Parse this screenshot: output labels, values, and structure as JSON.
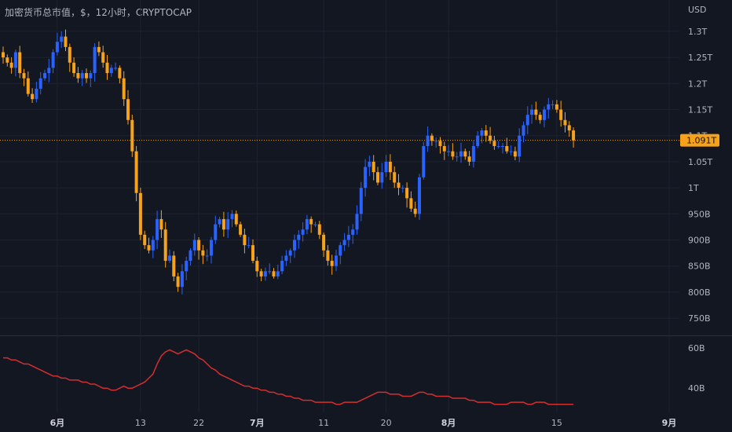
{
  "header": {
    "title": "加密货币总市值，$，12小时，CRYPTOCAP"
  },
  "colors": {
    "background": "#131722",
    "grid": "#1e2230",
    "up": "#2962ff",
    "down": "#f7a21b",
    "volume_line": "#d32f2f",
    "price_tag": "#f7a21b"
  },
  "chart_data": [
    {
      "type": "candlestick",
      "title": "加密货币总市值，$，12小时，CRYPTOCAP",
      "currency_label": "USD",
      "y_ticks": [
        {
          "value": 0.75,
          "label": "750B"
        },
        {
          "value": 0.8,
          "label": "800B"
        },
        {
          "value": 0.85,
          "label": "850B"
        },
        {
          "value": 0.9,
          "label": "900B"
        },
        {
          "value": 0.95,
          "label": "950B"
        },
        {
          "value": 1.0,
          "label": "1T"
        },
        {
          "value": 1.05,
          "label": "1.05T"
        },
        {
          "value": 1.1,
          "label": "1.1T"
        },
        {
          "value": 1.15,
          "label": "1.15T"
        },
        {
          "value": 1.2,
          "label": "1.2T"
        },
        {
          "value": 1.25,
          "label": "1.25T"
        },
        {
          "value": 1.3,
          "label": "1.3T"
        }
      ],
      "ylim": [
        0.72,
        1.33
      ],
      "x_ticks": [
        {
          "index": 13,
          "label": "6月",
          "bold": true
        },
        {
          "index": 33,
          "label": "13",
          "bold": false
        },
        {
          "index": 47,
          "label": "22",
          "bold": false
        },
        {
          "index": 61,
          "label": "7月",
          "bold": true
        },
        {
          "index": 77,
          "label": "11",
          "bold": false
        },
        {
          "index": 92,
          "label": "20",
          "bold": false
        },
        {
          "index": 107,
          "label": "8月",
          "bold": true
        },
        {
          "index": 133,
          "label": "15",
          "bold": false
        },
        {
          "index": 160,
          "label": "9月",
          "bold": true
        }
      ],
      "current_price": 1.091,
      "current_price_label": "1.091T",
      "candle_count": 138,
      "close_series": [
        1.25,
        1.24,
        1.23,
        1.26,
        1.22,
        1.21,
        1.18,
        1.17,
        1.19,
        1.21,
        1.22,
        1.23,
        1.26,
        1.28,
        1.29,
        1.27,
        1.24,
        1.22,
        1.21,
        1.22,
        1.21,
        1.22,
        1.27,
        1.26,
        1.24,
        1.22,
        1.23,
        1.23,
        1.21,
        1.17,
        1.13,
        1.07,
        0.99,
        0.91,
        0.89,
        0.88,
        0.9,
        0.94,
        0.92,
        0.86,
        0.87,
        0.83,
        0.81,
        0.84,
        0.86,
        0.88,
        0.9,
        0.88,
        0.87,
        0.87,
        0.9,
        0.93,
        0.94,
        0.92,
        0.94,
        0.95,
        0.93,
        0.91,
        0.89,
        0.89,
        0.86,
        0.84,
        0.83,
        0.84,
        0.84,
        0.83,
        0.84,
        0.86,
        0.87,
        0.88,
        0.9,
        0.91,
        0.92,
        0.94,
        0.93,
        0.93,
        0.91,
        0.88,
        0.86,
        0.85,
        0.87,
        0.89,
        0.9,
        0.91,
        0.92,
        0.95,
        1.0,
        1.04,
        1.05,
        1.03,
        1.01,
        1.03,
        1.05,
        1.03,
        1.01,
        1.0,
        1.0,
        0.98,
        0.96,
        0.95,
        1.02,
        1.08,
        1.1,
        1.09,
        1.09,
        1.08,
        1.07,
        1.07,
        1.06,
        1.06,
        1.07,
        1.06,
        1.05,
        1.08,
        1.1,
        1.11,
        1.1,
        1.09,
        1.08,
        1.08,
        1.08,
        1.07,
        1.07,
        1.06,
        1.1,
        1.12,
        1.14,
        1.15,
        1.14,
        1.13,
        1.15,
        1.16,
        1.16,
        1.15,
        1.13,
        1.12,
        1.11,
        1.091
      ]
    },
    {
      "type": "line",
      "series_role": "volume",
      "y_ticks": [
        {
          "value": 40,
          "label": "40B"
        },
        {
          "value": 60,
          "label": "60B"
        }
      ],
      "ylim": [
        28,
        65
      ],
      "values": [
        55,
        55,
        54,
        54,
        53,
        52,
        52,
        51,
        50,
        49,
        48,
        47,
        46,
        46,
        45,
        45,
        44,
        44,
        44,
        43,
        43,
        42,
        42,
        41,
        40,
        40,
        39,
        39,
        40,
        41,
        40,
        40,
        41,
        42,
        43,
        45,
        47,
        52,
        56,
        58,
        59,
        58,
        57,
        58,
        59,
        58,
        57,
        55,
        54,
        52,
        50,
        49,
        47,
        46,
        45,
        44,
        43,
        42,
        41,
        41,
        40,
        40,
        39,
        39,
        38,
        38,
        37,
        37,
        36,
        36,
        35,
        35,
        34,
        34,
        34,
        33,
        33,
        33,
        33,
        33,
        32,
        32,
        33,
        33,
        33,
        33,
        34,
        35,
        36,
        37,
        38,
        38,
        38,
        37,
        37,
        37,
        36,
        36,
        36,
        37,
        38,
        38,
        37,
        37,
        36,
        36,
        36,
        36,
        35,
        35,
        35,
        35,
        34,
        34,
        33,
        33,
        33,
        33,
        32,
        32,
        32,
        32,
        33,
        33,
        33,
        33,
        32,
        32,
        33,
        33,
        33,
        32,
        32,
        32,
        32,
        32,
        32,
        32
      ]
    }
  ]
}
